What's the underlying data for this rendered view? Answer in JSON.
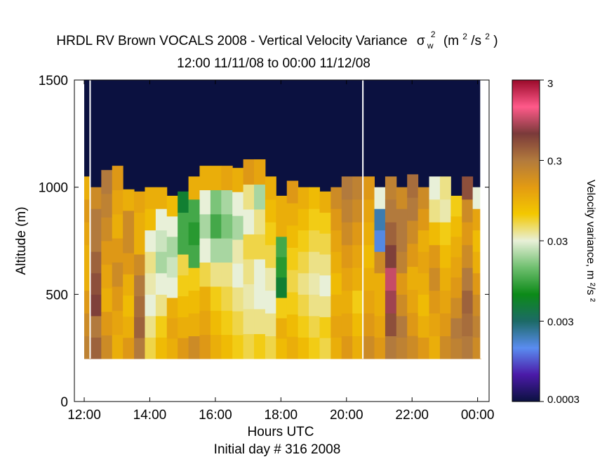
{
  "chart_data": {
    "type": "heatmap",
    "title": "HRDL RV Brown VOCALS 2008 - Vertical Velocity Variance",
    "title_symbol": "σ",
    "title_symbol_sub": "w",
    "title_symbol_sup": "2",
    "title_units": "(m",
    "title_units_sup1": "2",
    "title_units_mid": "/s",
    "title_units_sup2": "2",
    "title_units_end": ")",
    "subtitle": "12:00 11/11/08 to 00:00 11/12/08",
    "xlabel": "Hours UTC",
    "xlabel2": "Initial day # 316  2008",
    "ylabel": "Altitude (m)",
    "xlim": [
      11.7,
      24.35
    ],
    "ylim": [
      0,
      1500
    ],
    "x_ticks": [
      12,
      14,
      16,
      18,
      20,
      22,
      24
    ],
    "x_tick_labels": [
      "12:00",
      "14:00",
      "16:00",
      "18:00",
      "20:00",
      "22:00",
      "00:00"
    ],
    "y_ticks": [
      0,
      500,
      1000,
      1500
    ],
    "y_tick_labels": [
      "0",
      "500",
      "1000",
      "1500"
    ],
    "colorbar": {
      "label": "Velocity variance, m ²/s ²",
      "scale": "log",
      "range": [
        0.0003,
        3
      ],
      "tick_values": [
        3,
        0.3,
        0.03,
        0.003,
        0.0003
      ],
      "tick_labels": [
        "3",
        "0.3",
        "0.03",
        "0.003",
        "0.0003"
      ],
      "colors": [
        "#0b1140",
        "#4b1aa8",
        "#5a8cf0",
        "#1c6a66",
        "#0c8a18",
        "#6fbf6f",
        "#e8f0d8",
        "#f3c800",
        "#e39b12",
        "#b27a3d",
        "#7a3a3a",
        "#ff5a8a",
        "#9a0a2a"
      ]
    },
    "heatmap": {
      "background_above_top": "#0b1140",
      "y_bottom": 200,
      "columns": [
        {
          "x0": 12.0,
          "x1": 12.18,
          "top": 1050,
          "v": [
            0.25,
            0.2,
            0.15,
            0.1,
            0.1,
            0.12,
            0.15,
            0.1
          ]
        },
        {
          "x0": 12.18,
          "x1": 12.52,
          "top": 1000,
          "v": [
            0.4,
            0.3,
            0.6,
            0.5,
            0.4,
            0.3,
            0.3,
            0.2
          ]
        },
        {
          "x0": 12.52,
          "x1": 12.85,
          "top": 1080,
          "v": [
            0.2,
            0.15,
            0.1,
            0.12,
            0.15,
            0.2,
            0.25,
            0.3
          ]
        },
        {
          "x0": 12.85,
          "x1": 13.18,
          "top": 1100,
          "v": [
            0.1,
            0.12,
            0.15,
            0.2,
            0.15,
            0.1,
            0.12,
            0.15
          ]
        },
        {
          "x0": 13.18,
          "x1": 13.52,
          "top": 990,
          "v": [
            0.15,
            0.1,
            0.08,
            0.1,
            0.15,
            0.2,
            0.2,
            0.1
          ]
        },
        {
          "x0": 13.52,
          "x1": 13.85,
          "top": 980,
          "v": [
            0.3,
            0.4,
            0.35,
            0.3,
            0.2,
            0.1,
            0.1,
            0.12
          ]
        },
        {
          "x0": 13.85,
          "x1": 14.18,
          "top": 1000,
          "v": [
            0.05,
            0.04,
            0.03,
            0.035,
            0.04,
            0.03,
            0.08,
            0.1
          ]
        },
        {
          "x0": 14.18,
          "x1": 14.52,
          "top": 1000,
          "v": [
            0.08,
            0.06,
            0.04,
            0.03,
            0.02,
            0.025,
            0.03,
            0.1
          ]
        },
        {
          "x0": 14.52,
          "x1": 14.85,
          "top": 960,
          "v": [
            0.1,
            0.12,
            0.1,
            0.03,
            0.025,
            0.02,
            0.03,
            0.08
          ]
        },
        {
          "x0": 14.85,
          "x1": 15.18,
          "top": 980,
          "v": [
            0.15,
            0.1,
            0.08,
            0.06,
            0.05,
            0.01,
            0.01,
            0.005
          ]
        },
        {
          "x0": 15.18,
          "x1": 15.52,
          "top": 1050,
          "v": [
            0.2,
            0.1,
            0.08,
            0.06,
            0.01,
            0.008,
            0.01,
            0.1
          ]
        },
        {
          "x0": 15.52,
          "x1": 15.85,
          "top": 1100,
          "v": [
            0.15,
            0.12,
            0.1,
            0.05,
            0.03,
            0.02,
            0.03,
            0.1
          ]
        },
        {
          "x0": 15.85,
          "x1": 16.18,
          "top": 1100,
          "v": [
            0.1,
            0.08,
            0.06,
            0.04,
            0.02,
            0.01,
            0.015,
            0.1
          ]
        },
        {
          "x0": 16.18,
          "x1": 16.52,
          "top": 1100,
          "v": [
            0.08,
            0.06,
            0.05,
            0.04,
            0.02,
            0.015,
            0.02,
            0.12
          ]
        },
        {
          "x0": 16.52,
          "x1": 16.85,
          "top": 1090,
          "v": [
            0.06,
            0.05,
            0.04,
            0.03,
            0.035,
            0.02,
            0.03,
            0.1
          ]
        },
        {
          "x0": 16.85,
          "x1": 17.18,
          "top": 1130,
          "v": [
            0.05,
            0.04,
            0.035,
            0.04,
            0.05,
            0.03,
            0.04,
            0.15
          ]
        },
        {
          "x0": 17.18,
          "x1": 17.52,
          "top": 1130,
          "v": [
            0.06,
            0.04,
            0.03,
            0.03,
            0.05,
            0.04,
            0.02,
            0.12
          ]
        },
        {
          "x0": 17.52,
          "x1": 17.85,
          "top": 1050,
          "v": [
            0.05,
            0.04,
            0.03,
            0.035,
            0.05,
            0.06,
            0.08,
            0.1
          ]
        },
        {
          "x0": 17.85,
          "x1": 18.18,
          "top": 960,
          "v": [
            0.08,
            0.1,
            0.06,
            0.005,
            0.008,
            0.01,
            0.1,
            0.1
          ]
        },
        {
          "x0": 18.18,
          "x1": 18.52,
          "top": 1030,
          "v": [
            0.1,
            0.08,
            0.06,
            0.05,
            0.06,
            0.08,
            0.1,
            0.15
          ]
        },
        {
          "x0": 18.52,
          "x1": 18.85,
          "top": 1000,
          "v": [
            0.08,
            0.06,
            0.05,
            0.04,
            0.05,
            0.06,
            0.08,
            0.1
          ]
        },
        {
          "x0": 18.85,
          "x1": 19.18,
          "top": 1000,
          "v": [
            0.06,
            0.05,
            0.04,
            0.035,
            0.04,
            0.05,
            0.06,
            0.08
          ]
        },
        {
          "x0": 19.18,
          "x1": 19.52,
          "top": 980,
          "v": [
            0.05,
            0.06,
            0.04,
            0.03,
            0.04,
            0.05,
            0.06,
            0.1
          ]
        },
        {
          "x0": 19.52,
          "x1": 19.85,
          "top": 1000,
          "v": [
            0.1,
            0.12,
            0.1,
            0.08,
            0.1,
            0.12,
            0.15,
            0.2
          ]
        },
        {
          "x0": 19.85,
          "x1": 20.18,
          "top": 1050,
          "v": [
            0.15,
            0.12,
            0.1,
            0.12,
            0.15,
            0.2,
            0.25,
            0.3
          ]
        },
        {
          "x0": 20.18,
          "x1": 20.5,
          "top": 1050,
          "v": [
            0.1,
            0.08,
            0.06,
            0.1,
            0.12,
            0.15,
            0.2,
            0.25
          ]
        },
        {
          "x0": 20.52,
          "x1": 20.85,
          "top": 1050,
          "v": [
            0.2,
            0.15,
            0.12,
            0.1,
            0.08,
            0.1,
            0.12,
            0.15
          ]
        },
        {
          "x0": 20.85,
          "x1": 21.18,
          "top": 1000,
          "v": [
            0.15,
            0.12,
            0.1,
            0.1,
            0.2,
            0.0015,
            0.002,
            0.03
          ]
        },
        {
          "x0": 21.18,
          "x1": 21.52,
          "top": 1050,
          "v": [
            0.3,
            0.5,
            0.8,
            1.0,
            0.6,
            0.4,
            0.3,
            0.25
          ]
        },
        {
          "x0": 21.52,
          "x1": 21.85,
          "top": 1000,
          "v": [
            0.25,
            0.3,
            0.2,
            0.15,
            0.25,
            0.3,
            0.3,
            0.2
          ]
        },
        {
          "x0": 21.85,
          "x1": 22.18,
          "top": 1060,
          "v": [
            0.2,
            0.15,
            0.12,
            0.1,
            0.15,
            0.2,
            0.3,
            0.35
          ]
        },
        {
          "x0": 22.18,
          "x1": 22.52,
          "top": 1000,
          "v": [
            0.15,
            0.1,
            0.08,
            0.1,
            0.12,
            0.1,
            0.15,
            0.2
          ]
        },
        {
          "x0": 22.52,
          "x1": 22.85,
          "top": 1050,
          "v": [
            0.1,
            0.12,
            0.15,
            0.2,
            0.15,
            0.08,
            0.04,
            0.03
          ]
        },
        {
          "x0": 22.85,
          "x1": 23.18,
          "top": 1050,
          "v": [
            0.2,
            0.15,
            0.12,
            0.1,
            0.08,
            0.06,
            0.035,
            0.04
          ]
        },
        {
          "x0": 23.18,
          "x1": 23.52,
          "top": 960,
          "v": [
            0.25,
            0.3,
            0.2,
            0.15,
            0.12,
            0.1,
            0.08,
            0.06
          ]
        },
        {
          "x0": 23.52,
          "x1": 23.85,
          "top": 1050,
          "v": [
            0.3,
            0.35,
            0.4,
            0.3,
            0.2,
            0.15,
            0.2,
            0.5
          ]
        },
        {
          "x0": 23.85,
          "x1": 24.1,
          "top": 1000,
          "v": [
            0.2,
            0.25,
            0.2,
            0.15,
            0.1,
            0.08,
            0.12,
            0.03
          ]
        }
      ],
      "vertical_lines": [
        12.18,
        20.5,
        24.1
      ]
    }
  }
}
